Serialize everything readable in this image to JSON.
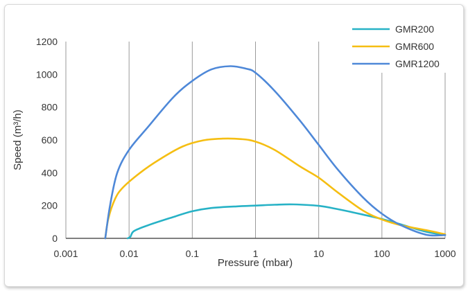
{
  "chart_data": {
    "type": "line",
    "title": "",
    "xlabel": "Pressure (mbar)",
    "ylabel": "Speed (m³/h)",
    "x_scale": "log",
    "xlim": [
      0.001,
      1000
    ],
    "ylim": [
      0,
      1200
    ],
    "x_ticks": [
      0.001,
      0.01,
      0.1,
      1,
      10,
      100,
      1000
    ],
    "x_tick_labels": [
      "0.001",
      "0.01",
      "0.1",
      "1",
      "10",
      "100",
      "1000"
    ],
    "y_ticks": [
      0,
      200,
      400,
      600,
      800,
      1000,
      1200
    ],
    "y_tick_labels": [
      "0",
      "200",
      "400",
      "600",
      "800",
      "1000",
      "1200"
    ],
    "grid": "vertical",
    "legend_position": "top-right",
    "series": [
      {
        "name": "GMR200",
        "color": "#27B2C6",
        "points": [
          [
            0.0095,
            0
          ],
          [
            0.0105,
            10
          ],
          [
            0.012,
            45
          ],
          [
            0.02,
            80
          ],
          [
            0.05,
            130
          ],
          [
            0.1,
            165
          ],
          [
            0.2,
            185
          ],
          [
            0.5,
            195
          ],
          [
            1,
            200
          ],
          [
            2,
            205
          ],
          [
            4,
            207
          ],
          [
            10,
            198
          ],
          [
            20,
            178
          ],
          [
            50,
            145
          ],
          [
            100,
            118
          ],
          [
            200,
            85
          ],
          [
            500,
            40
          ],
          [
            1000,
            20
          ]
        ]
      },
      {
        "name": "GMR600",
        "color": "#F5BE12",
        "points": [
          [
            0.0042,
            0
          ],
          [
            0.0047,
            120
          ],
          [
            0.006,
            240
          ],
          [
            0.008,
            310
          ],
          [
            0.015,
            400
          ],
          [
            0.03,
            480
          ],
          [
            0.07,
            560
          ],
          [
            0.15,
            598
          ],
          [
            0.3,
            608
          ],
          [
            0.6,
            605
          ],
          [
            1,
            590
          ],
          [
            2,
            540
          ],
          [
            5,
            440
          ],
          [
            10,
            370
          ],
          [
            20,
            280
          ],
          [
            50,
            170
          ],
          [
            100,
            115
          ],
          [
            200,
            80
          ],
          [
            500,
            50
          ],
          [
            1000,
            25
          ]
        ]
      },
      {
        "name": "GMR1200",
        "color": "#4E88D8",
        "points": [
          [
            0.0042,
            0
          ],
          [
            0.005,
            200
          ],
          [
            0.0065,
            400
          ],
          [
            0.01,
            540
          ],
          [
            0.02,
            680
          ],
          [
            0.05,
            860
          ],
          [
            0.1,
            960
          ],
          [
            0.2,
            1030
          ],
          [
            0.4,
            1050
          ],
          [
            0.7,
            1035
          ],
          [
            1,
            1010
          ],
          [
            2,
            900
          ],
          [
            5,
            720
          ],
          [
            10,
            570
          ],
          [
            20,
            420
          ],
          [
            50,
            250
          ],
          [
            100,
            150
          ],
          [
            200,
            80
          ],
          [
            500,
            22
          ],
          [
            1000,
            20
          ]
        ]
      }
    ]
  }
}
